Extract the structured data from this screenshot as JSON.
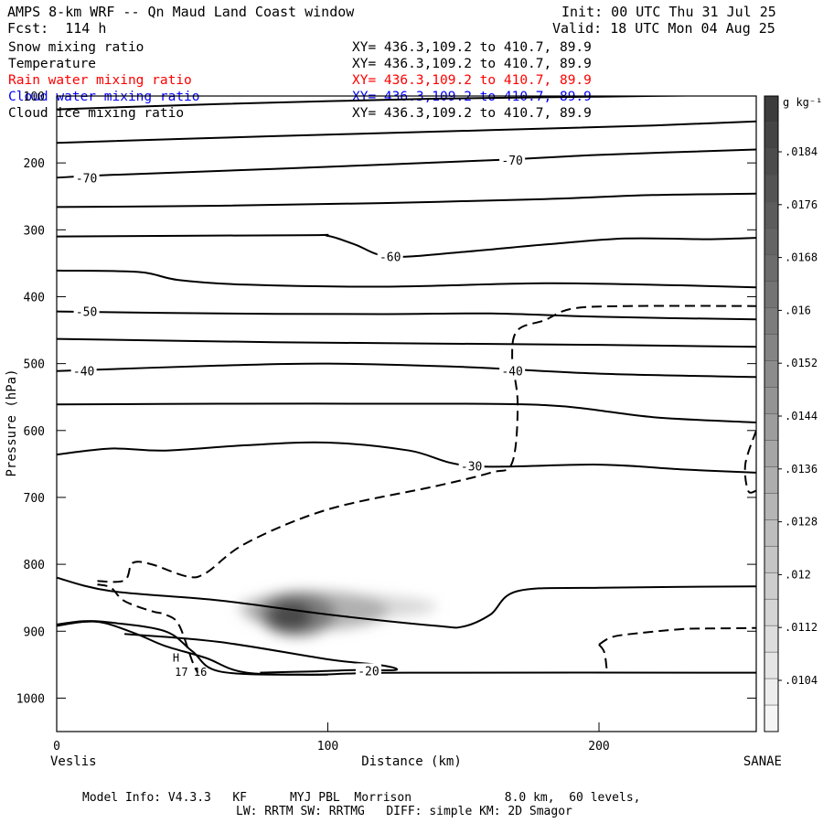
{
  "header": {
    "title": "AMPS 8-km WRF -- Qn Maud Land Coast window",
    "forecast": "Fcst:  114 h",
    "init": "Init: 00 UTC Thu 31 Jul 25",
    "valid": "Valid: 18 UTC Mon 04 Aug 25"
  },
  "fields": [
    {
      "name": "Snow mixing ratio",
      "xy": "XY= 436.3,109.2 to 410.7, 89.9",
      "color": "#000000"
    },
    {
      "name": "Temperature",
      "xy": "XY= 436.3,109.2 to 410.7, 89.9",
      "color": "#000000"
    },
    {
      "name": "Rain water mixing ratio",
      "xy": "XY= 436.3,109.2 to 410.7, 89.9",
      "color": "#ff0000"
    },
    {
      "name": "Cloud water mixing ratio",
      "xy": "XY= 436.3,109.2 to 410.7, 89.9",
      "color": "#0000ff"
    },
    {
      "name": "Cloud ice mixing ratio",
      "xy": "XY= 436.3,109.2 to 410.7, 89.9",
      "color": "#000000"
    }
  ],
  "footer": {
    "line1": "Model Info: V4.3.3   KF      MYJ PBL  Morrison             8.0 km,  60 levels,",
    "line2": "LW: RRTM SW: RRTMG   DIFF: simple KM: 2D Smagor"
  },
  "chart_data": {
    "type": "contour",
    "xlabel": "Distance (km)",
    "ylabel": "Pressure (hPa)",
    "x_left_label": "Veslis",
    "x_right_label": "SANAE",
    "xlim": [
      0,
      258
    ],
    "ylim": [
      1050,
      100
    ],
    "x_ticks": [
      0,
      100,
      200
    ],
    "y_ticks": [
      100,
      200,
      300,
      400,
      500,
      600,
      700,
      800,
      900,
      1000
    ],
    "colorbar": {
      "unit": "g kg⁻¹",
      "ticks": [
        ".0184",
        ".0176",
        ".0168",
        ".016",
        ".0152",
        ".0144",
        ".0136",
        ".0128",
        ".012",
        ".0112",
        ".0104"
      ]
    },
    "isotherm_labels": [
      {
        "text": "-70",
        "x": 11,
        "p": 222
      },
      {
        "text": "-70",
        "x": 168,
        "p": 196
      },
      {
        "text": "-60",
        "x": 123,
        "p": 340
      },
      {
        "text": "-50",
        "x": 11,
        "p": 422
      },
      {
        "text": "-40",
        "x": 10,
        "p": 511
      },
      {
        "text": "-40",
        "x": 168,
        "p": 511
      },
      {
        "text": "-30",
        "x": 153,
        "p": 653
      },
      {
        "text": "-20",
        "x": 115,
        "p": 959
      }
    ],
    "other_labels": [
      {
        "text": "H",
        "x": 44,
        "p": 940
      },
      {
        "text": "17",
        "x": 46,
        "p": 961
      },
      {
        "text": "16",
        "x": 53,
        "p": 961
      }
    ],
    "isotherms": [
      [
        [
          0,
          120
        ],
        [
          60,
          112
        ],
        [
          140,
          104
        ],
        [
          200,
          101
        ],
        [
          258,
          98
        ]
      ],
      [
        [
          0,
          170
        ],
        [
          80,
          160
        ],
        [
          160,
          151
        ],
        [
          220,
          144
        ],
        [
          258,
          138
        ]
      ],
      [
        [
          0,
          222
        ],
        [
          20,
          218
        ],
        [
          80,
          209
        ],
        [
          160,
          196
        ],
        [
          200,
          188
        ],
        [
          258,
          180
        ]
      ],
      [
        [
          0,
          266
        ],
        [
          60,
          264
        ],
        [
          120,
          260
        ],
        [
          180,
          254
        ],
        [
          220,
          248
        ],
        [
          258,
          246
        ]
      ],
      [
        [
          0,
          310
        ],
        [
          90,
          308
        ],
        [
          100,
          309
        ],
        [
          110,
          322
        ],
        [
          123,
          340
        ],
        [
          150,
          333
        ],
        [
          180,
          322
        ],
        [
          210,
          313
        ],
        [
          240,
          314
        ],
        [
          258,
          312
        ]
      ],
      [
        [
          0,
          361
        ],
        [
          30,
          363
        ],
        [
          45,
          375
        ],
        [
          70,
          382
        ],
        [
          120,
          385
        ],
        [
          180,
          380
        ],
        [
          230,
          383
        ],
        [
          258,
          386
        ]
      ],
      [
        [
          0,
          422
        ],
        [
          60,
          425
        ],
        [
          120,
          426
        ],
        [
          160,
          425
        ],
        [
          200,
          430
        ],
        [
          258,
          434
        ]
      ],
      [
        [
          0,
          463
        ],
        [
          80,
          468
        ],
        [
          140,
          470
        ],
        [
          200,
          472
        ],
        [
          258,
          475
        ]
      ],
      [
        [
          0,
          511
        ],
        [
          60,
          503
        ],
        [
          100,
          500
        ],
        [
          150,
          505
        ],
        [
          200,
          515
        ],
        [
          258,
          520
        ]
      ],
      [
        [
          0,
          561
        ],
        [
          60,
          560
        ],
        [
          120,
          560
        ],
        [
          180,
          562
        ],
        [
          220,
          580
        ],
        [
          258,
          588
        ]
      ],
      [
        [
          0,
          636
        ],
        [
          20,
          627
        ],
        [
          40,
          630
        ],
        [
          70,
          622
        ],
        [
          100,
          618
        ],
        [
          130,
          630
        ],
        [
          153,
          653
        ],
        [
          200,
          651
        ],
        [
          230,
          658
        ],
        [
          258,
          663
        ]
      ],
      [
        [
          0,
          820
        ],
        [
          20,
          840
        ],
        [
          60,
          854
        ],
        [
          100,
          875
        ],
        [
          140,
          892
        ],
        [
          150,
          893
        ],
        [
          160,
          875
        ],
        [
          170,
          840
        ],
        [
          200,
          835
        ],
        [
          258,
          833
        ]
      ],
      [
        [
          0,
          890
        ],
        [
          10,
          885
        ],
        [
          20,
          887
        ],
        [
          40,
          900
        ],
        [
          50,
          930
        ],
        [
          60,
          960
        ],
        [
          90,
          965
        ],
        [
          110,
          963
        ],
        [
          130,
          962
        ],
        [
          258,
          962
        ]
      ],
      [
        [
          0,
          892
        ],
        [
          10,
          886
        ],
        [
          18,
          888
        ],
        [
          30,
          905
        ],
        [
          40,
          922
        ],
        [
          55,
          940
        ],
        [
          70,
          962
        ],
        [
          100,
          965
        ]
      ],
      [
        [
          25,
          904
        ],
        [
          60,
          916
        ],
        [
          100,
          942
        ],
        [
          120,
          951
        ],
        [
          125,
          958
        ],
        [
          110,
          958
        ],
        [
          95,
          960
        ],
        [
          75,
          962
        ]
      ]
    ],
    "dashed": [
      [
        [
          15,
          825
        ],
        [
          25,
          824
        ],
        [
          28,
          798
        ],
        [
          35,
          800
        ],
        [
          48,
          818
        ],
        [
          55,
          813
        ],
        [
          70,
          768
        ],
        [
          100,
          718
        ],
        [
          140,
          683
        ],
        [
          160,
          663
        ],
        [
          168,
          648
        ],
        [
          170,
          560
        ],
        [
          168,
          490
        ],
        [
          170,
          450
        ],
        [
          180,
          435
        ],
        [
          190,
          418
        ],
        [
          210,
          414
        ],
        [
          258,
          414
        ]
      ],
      [
        [
          15,
          830
        ],
        [
          20,
          835
        ],
        [
          25,
          855
        ],
        [
          35,
          870
        ],
        [
          40,
          875
        ],
        [
          45,
          890
        ],
        [
          50,
          945
        ],
        [
          52,
          962
        ]
      ],
      [
        [
          200,
          920
        ],
        [
          204,
          910
        ],
        [
          210,
          905
        ],
        [
          230,
          897
        ],
        [
          240,
          896
        ],
        [
          258,
          895
        ],
        [
          258,
          893
        ]
      ],
      [
        [
          200,
          920
        ],
        [
          202,
          932
        ],
        [
          203,
          962
        ]
      ],
      [
        [
          258,
          600
        ],
        [
          254,
          650
        ],
        [
          255,
          690
        ],
        [
          258,
          690
        ]
      ]
    ],
    "snow_max": {
      "x": 87,
      "p": 877,
      "value": ".0184"
    }
  }
}
